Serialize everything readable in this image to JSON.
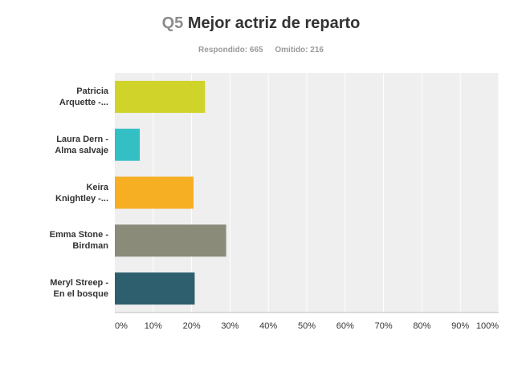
{
  "header": {
    "question_number": "Q5",
    "question_title": "Mejor actriz de reparto",
    "answered": "Respondido: 665",
    "skipped": "Omitido: 216"
  },
  "chart_data": {
    "type": "bar",
    "orientation": "horizontal",
    "title": "Mejor actriz de reparto",
    "categories": [
      [
        "Patricia",
        "Arquette -..."
      ],
      [
        "Laura Dern -",
        "Alma salvaje"
      ],
      [
        "Keira",
        "Knightley -..."
      ],
      [
        "Emma Stone -",
        "Birdman"
      ],
      [
        "Meryl Streep -",
        "En el bosque"
      ]
    ],
    "values": [
      23.5,
      6.5,
      20.5,
      29.0,
      20.8
    ],
    "colors": [
      "#d0d42a",
      "#33bfc4",
      "#f6ae23",
      "#8a8b79",
      "#2e5f6e"
    ],
    "xlim": [
      0,
      100
    ],
    "ticks": [
      "0%",
      "10%",
      "20%",
      "30%",
      "40%",
      "50%",
      "60%",
      "70%",
      "80%",
      "90%",
      "100%"
    ],
    "grid": true,
    "legend": "none",
    "xlabel": "",
    "ylabel": ""
  }
}
